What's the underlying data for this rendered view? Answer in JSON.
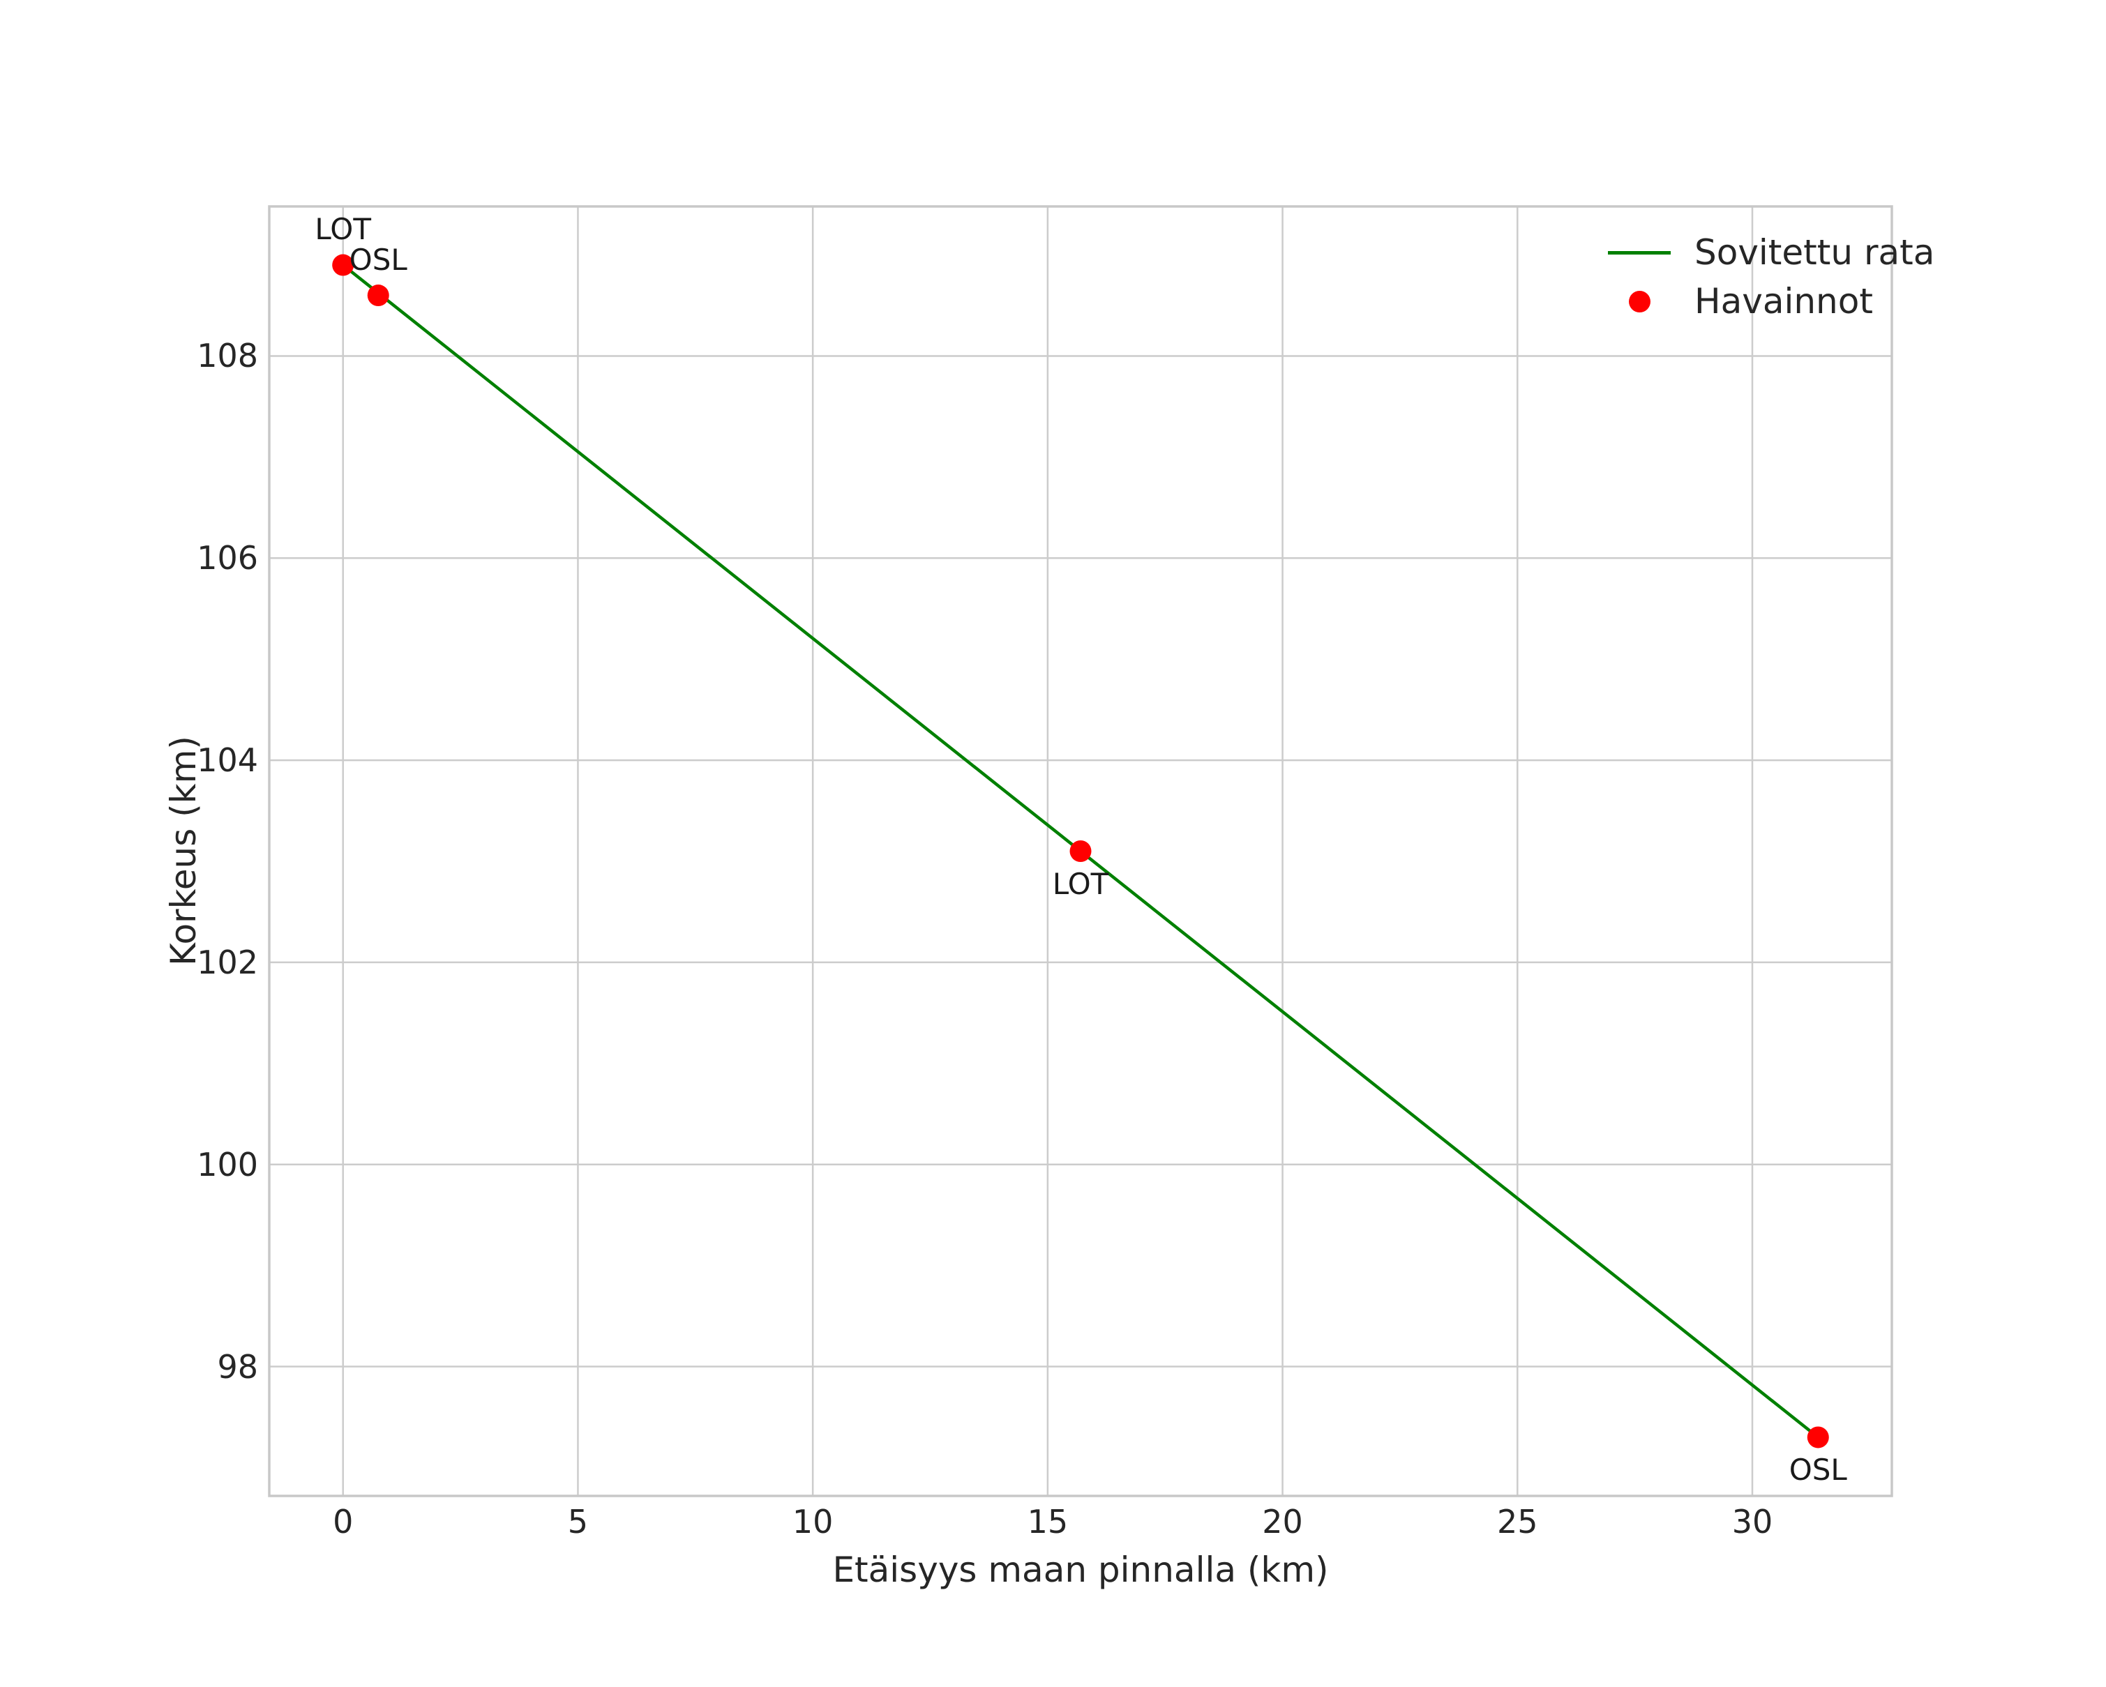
{
  "chart_data": {
    "type": "scatter",
    "title": "",
    "xlabel": "Etäisyys maan pinnalla (km)",
    "ylabel": "Korkeus (km)",
    "xlim": [
      -1.57,
      32.97
    ],
    "ylim": [
      96.72,
      109.48
    ],
    "x_ticks": [
      0,
      5,
      10,
      15,
      20,
      25,
      30
    ],
    "y_ticks": [
      98,
      100,
      102,
      104,
      106,
      108
    ],
    "grid": true,
    "legend_position": "upper right",
    "series": [
      {
        "name": "Sovitettu rata",
        "kind": "line",
        "color": "#008000",
        "points": [
          [
            0.0,
            108.9
          ],
          [
            31.4,
            97.3
          ]
        ]
      },
      {
        "name": "Havainnot",
        "kind": "scatter",
        "color": "#ff0000",
        "points": [
          [
            0.0,
            108.9
          ],
          [
            0.75,
            108.6
          ],
          [
            15.7,
            103.1
          ],
          [
            31.4,
            97.3
          ]
        ]
      }
    ],
    "annotations": [
      {
        "text": "LOT",
        "x": 0.0,
        "y": 108.9,
        "placement": "above"
      },
      {
        "text": "OSL",
        "x": 0.75,
        "y": 108.6,
        "placement": "above"
      },
      {
        "text": "LOT",
        "x": 15.7,
        "y": 103.1,
        "placement": "below"
      },
      {
        "text": "OSL",
        "x": 31.4,
        "y": 97.3,
        "placement": "below"
      }
    ]
  },
  "colors": {
    "line": "#008000",
    "marker": "#ff0000",
    "grid": "#cccccc",
    "spine": "#c8c8c8",
    "text": "#262626",
    "background": "#ffffff"
  }
}
